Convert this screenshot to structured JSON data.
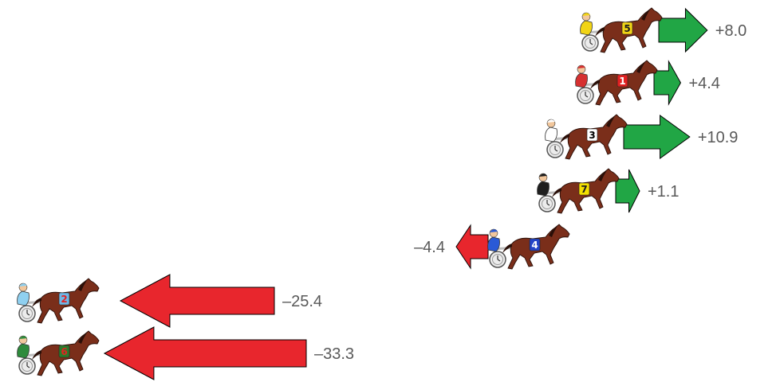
{
  "chart_data": {
    "type": "bar",
    "orientation": "horizontal-arrows",
    "categories": [
      "5",
      "1",
      "3",
      "7",
      "4",
      "2",
      "6"
    ],
    "values": [
      8.0,
      4.4,
      10.9,
      1.1,
      -4.4,
      -25.4,
      -33.3
    ],
    "labels": [
      "+8.0",
      "+4.4",
      "+10.9",
      "+1.1",
      "–4.4",
      "–25.4",
      "–33.3"
    ],
    "title": "",
    "xlabel": "",
    "ylabel": "",
    "grid": false,
    "legend": "none"
  },
  "colors": {
    "positive": "#21a645",
    "negative": "#e8262d",
    "arrow_outline": "#000000",
    "label_text": "#595959",
    "horse_coat": "#7a2e1a",
    "sulky_wheel": "#c9c9c9",
    "saddle_cloths": [
      "#f1d416",
      "#e22222",
      "#ffffff",
      "#f4e000",
      "#2344c8",
      "#6fb7e6",
      "#2a7a2a"
    ],
    "silks": [
      "#f1d416",
      "#d63030",
      "#ffffff",
      "#1e1e1e",
      "#2a5ad6",
      "#8fd0f0",
      "#2e8b3c"
    ],
    "number_colors": [
      "#1e1e1e",
      "#ffffff",
      "#000000",
      "#1e1e1e",
      "#ffffff",
      "#e22222",
      "#e22222"
    ]
  },
  "icons": {
    "runner": "harness-horse-with-sulky-icon",
    "gain": "right-arrow-icon",
    "loss": "left-arrow-icon"
  }
}
